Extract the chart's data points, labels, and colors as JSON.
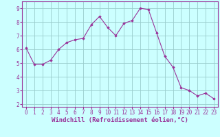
{
  "x": [
    0,
    1,
    2,
    3,
    4,
    5,
    6,
    7,
    8,
    9,
    10,
    11,
    12,
    13,
    14,
    15,
    16,
    17,
    18,
    19,
    20,
    21,
    22,
    23
  ],
  "y": [
    6.1,
    4.9,
    4.9,
    5.2,
    6.0,
    6.5,
    6.7,
    6.8,
    7.8,
    8.4,
    7.6,
    7.0,
    7.9,
    8.1,
    9.0,
    8.9,
    7.2,
    5.5,
    4.7,
    3.2,
    3.0,
    2.6,
    2.8,
    2.4
  ],
  "line_color": "#993399",
  "marker": "D",
  "marker_size": 1.8,
  "bg_color": "#ccffff",
  "grid_color": "#99cccc",
  "xlabel": "Windchill (Refroidissement éolien,°C)",
  "xlabel_fontsize": 6.5,
  "tick_fontsize": 5.5,
  "ylim": [
    1.8,
    9.5
  ],
  "xlim": [
    -0.5,
    23.5
  ],
  "yticks": [
    2,
    3,
    4,
    5,
    6,
    7,
    8,
    9
  ],
  "xticks": [
    0,
    1,
    2,
    3,
    4,
    5,
    6,
    7,
    8,
    9,
    10,
    11,
    12,
    13,
    14,
    15,
    16,
    17,
    18,
    19,
    20,
    21,
    22,
    23
  ]
}
